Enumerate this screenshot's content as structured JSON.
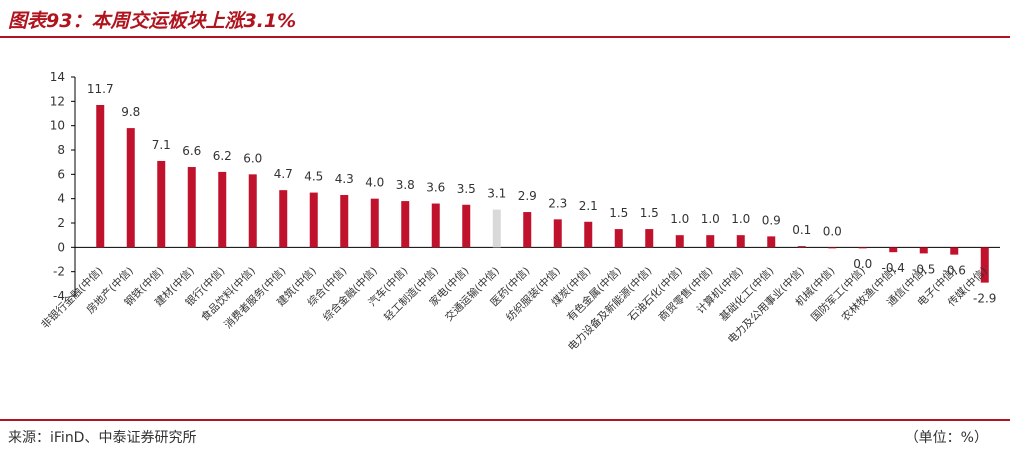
{
  "title": "图表93：本周交运板块上涨3.1%",
  "footer": {
    "source": "来源：iFinD、中泰证券研究所",
    "unit": "（单位：%）"
  },
  "colors": {
    "accent": "#b0151f",
    "bar": "#c0122c",
    "highlight": "#d9d9d9",
    "text": "#333333",
    "axis": "#000000"
  },
  "chart_data": {
    "type": "bar",
    "ylim": [
      -4,
      14
    ],
    "yticks": [
      -4,
      -2,
      0,
      2,
      4,
      6,
      8,
      10,
      12,
      14
    ],
    "grid": false,
    "categories": [
      "非银行金融(中信)",
      "房地产(中信)",
      "钢铁(中信)",
      "建材(中信)",
      "银行(中信)",
      "食品饮料(中信)",
      "消费者服务(中信)",
      "建筑(中信)",
      "综合(中信)",
      "综合金融(中信)",
      "汽车(中信)",
      "轻工制造(中信)",
      "家电(中信)",
      "交通运输(中信)",
      "医药(中信)",
      "纺织服装(中信)",
      "煤炭(中信)",
      "有色金属(中信)",
      "电力设备及新能源(中信)",
      "石油石化(中信)",
      "商贸零售(中信)",
      "计算机(中信)",
      "基础化工(中信)",
      "电力及公用事业(中信)",
      "机械(中信)",
      "国防军工(中信)",
      "农林牧渔(中信)",
      "通信(中信)",
      "电子(中信)",
      "传媒(中信)"
    ],
    "values": [
      11.7,
      9.8,
      7.1,
      6.6,
      6.2,
      6.0,
      4.7,
      4.5,
      4.3,
      4.0,
      3.8,
      3.6,
      3.5,
      3.1,
      2.9,
      2.3,
      2.1,
      1.5,
      1.5,
      1.0,
      1.0,
      1.0,
      0.9,
      0.1,
      0.0,
      -0.05,
      -0.4,
      -0.5,
      -0.6,
      -2.9
    ],
    "labels": [
      "11.7",
      "9.8",
      "7.1",
      "6.6",
      "6.2",
      "6.0",
      "4.7",
      "4.5",
      "4.3",
      "4.0",
      "3.8",
      "3.6",
      "3.5",
      "3.1",
      "2.9",
      "2.3",
      "2.1",
      "1.5",
      "1.5",
      "1.0",
      "1.0",
      "1.0",
      "0.9",
      "0.1",
      "0.0",
      "0.0",
      "-0.4",
      "-0.5",
      "-0.6",
      "-2.9"
    ],
    "highlight_category": "交通运输(中信)"
  }
}
